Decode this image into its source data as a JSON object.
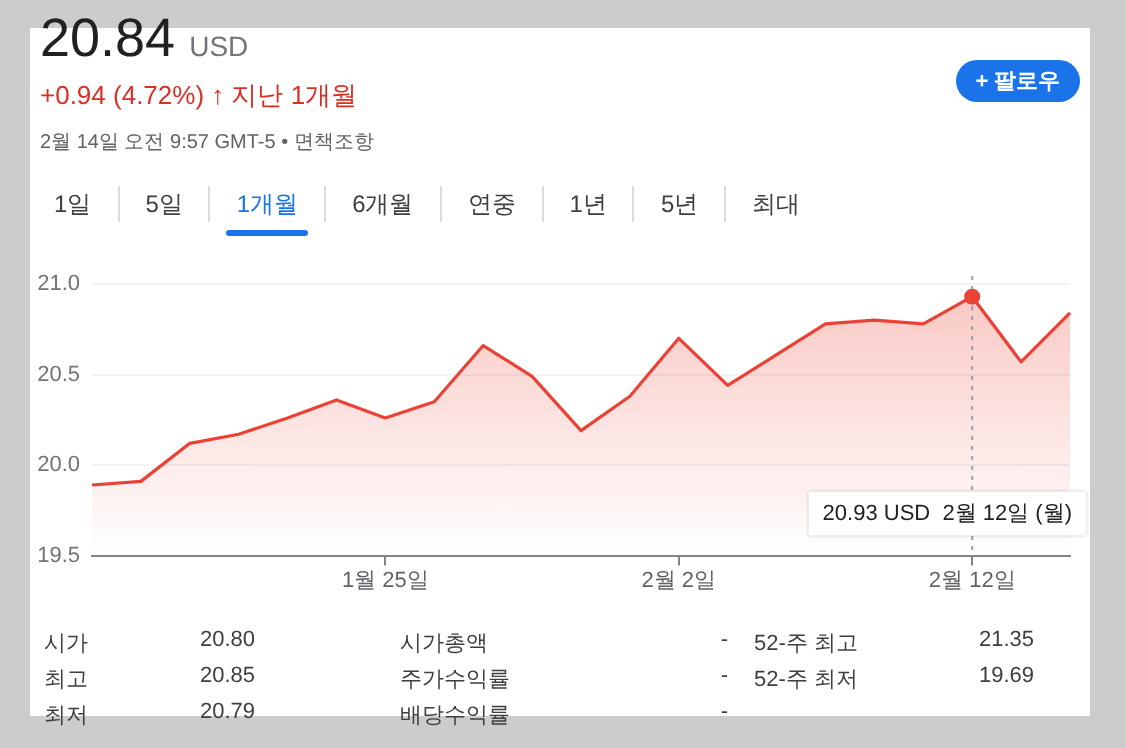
{
  "chart_data": {
    "type": "area",
    "title": "20.84",
    "subtitle": "+0.94 (4.72%) ↑ 지난 1개월",
    "categories": [
      null,
      null,
      null,
      null,
      null,
      null,
      "1월 25일",
      null,
      null,
      null,
      null,
      null,
      "2월 2일",
      null,
      null,
      null,
      null,
      null,
      "2월 12일",
      null,
      null
    ],
    "series": [
      {
        "color": "#ea4335",
        "values": [
          19.89,
          19.91,
          20.12,
          20.17,
          20.26,
          20.36,
          20.26,
          20.35,
          20.66,
          20.49,
          20.19,
          20.38,
          20.7,
          20.44,
          20.61,
          20.78,
          20.8,
          20.78,
          20.93,
          20.57,
          20.84
        ]
      }
    ],
    "ylim": [
      19.5,
      21.0
    ],
    "yticks": [
      {
        "value": 19.5,
        "label": "19.5"
      },
      {
        "value": 20,
        "label": "20.0"
      },
      {
        "value": 20.5,
        "label": "20.5"
      },
      {
        "value": 21,
        "label": "21.0"
      }
    ],
    "grid": "y",
    "legend": false,
    "marker": "none",
    "line_style": "solid",
    "ref_lines": [
      {
        "axis": "x",
        "value": "2월 12일",
        "color": "#9aa0a6",
        "line_style": "dotted"
      }
    ],
    "annotations": [
      "USD",
      "20.93 USD  2월 12일 (월)",
      "2월 14일 오전 9:57 GMT-5 • 면책조항",
      "1일",
      "5일",
      "1개월",
      "6개월",
      "연중",
      "1년",
      "5년",
      "최대",
      "+ 팔로우",
      "시가",
      "20.80",
      "시가총액",
      "-",
      "52-주 최고",
      "21.35",
      "최고",
      "20.85",
      "주가수익률",
      "-",
      "52-주 최저",
      "19.69",
      "최저",
      "20.79",
      "배당수익률",
      "-"
    ]
  }
}
